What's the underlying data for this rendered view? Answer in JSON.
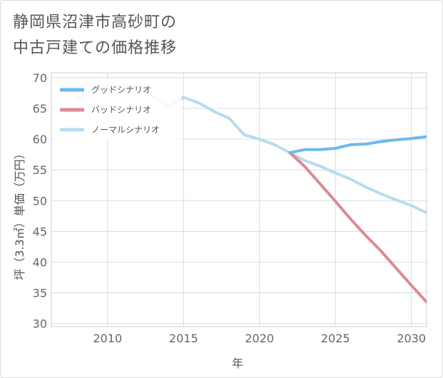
{
  "title_line1": "静岡県沼津市高砂町の",
  "title_line2": "中古戸建ての価格推移",
  "chart_data": {
    "type": "line",
    "title": "静岡県沼津市高砂町の中古戸建ての価格推移",
    "xlabel": "年",
    "ylabel": "坪（3.3㎡）単価（万円）",
    "xlim": [
      2006.3,
      2031
    ],
    "ylim": [
      29.5,
      70.8
    ],
    "xticks": [
      2010,
      2015,
      2020,
      2025,
      2030
    ],
    "yticks": [
      30,
      35,
      40,
      45,
      50,
      55,
      60,
      65,
      70
    ],
    "grid": true,
    "legend_position": "top-left",
    "series": [
      {
        "name": "グッドシナリオ",
        "color": "#6cb8ef",
        "x": [
          2022,
          2023,
          2024,
          2025,
          2026,
          2027,
          2028,
          2029,
          2030,
          2031
        ],
        "y": [
          57.8,
          58.3,
          58.3,
          58.5,
          59.1,
          59.2,
          59.6,
          59.9,
          60.1,
          60.4
        ]
      },
      {
        "name": "バッドシナリオ",
        "color": "#dc8a92",
        "x": [
          2022,
          2023,
          2024,
          2025,
          2026,
          2027,
          2028,
          2029,
          2030,
          2031
        ],
        "y": [
          57.8,
          55.5,
          52.7,
          49.9,
          47.0,
          44.3,
          41.8,
          39.0,
          36.2,
          33.5
        ]
      },
      {
        "name": "ノーマルシナリオ",
        "color": "#b7dcee",
        "x": [
          2008,
          2009,
          2010,
          2011,
          2012,
          2013,
          2014,
          2015,
          2016,
          2017,
          2018,
          2019,
          2020,
          2021,
          2022,
          2023,
          2024,
          2025,
          2026,
          2027,
          2028,
          2029,
          2030,
          2031
        ],
        "y": [
          66.5,
          68.0,
          68.4,
          68.7,
          68.5,
          67.0,
          65.3,
          66.8,
          65.9,
          64.5,
          63.4,
          60.7,
          60.0,
          59.1,
          57.8,
          56.5,
          55.6,
          54.5,
          53.5,
          52.2,
          51.1,
          50.1,
          49.2,
          48.0
        ]
      }
    ]
  }
}
